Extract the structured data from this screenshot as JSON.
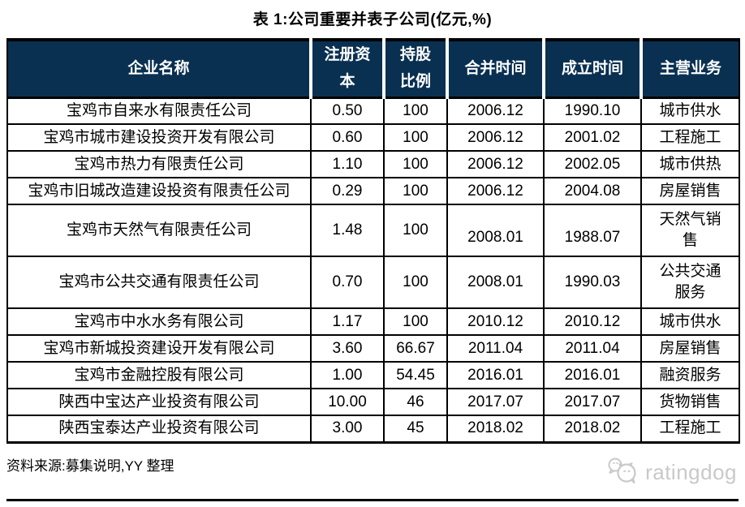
{
  "page": {
    "title": "表 1:公司重要并表子公司(亿元,%)",
    "source_note": "资料来源:募集说明,YY 整理",
    "brand": "ratingdog"
  },
  "colors": {
    "header_bg": "#093051",
    "header_text": "#ffffff",
    "table_border": "#000000",
    "brand_gray": "#c9c9c9"
  },
  "table": {
    "headers": [
      "企业名称",
      "注册资本",
      "持股比例",
      "合并时间",
      "成立时间",
      "主营业务"
    ],
    "rows": [
      [
        "宝鸡市自来水有限责任公司",
        "0.50",
        "100",
        "2006.12",
        "1990.10",
        "城市供水"
      ],
      [
        "宝鸡市城市建设投资开发有限公司",
        "0.60",
        "100",
        "2006.12",
        "2001.02",
        "工程施工"
      ],
      [
        "宝鸡市热力有限责任公司",
        "1.10",
        "100",
        "2006.12",
        "2002.05",
        "城市供热"
      ],
      [
        "宝鸡市旧城改造建设投资有限责任公司",
        "0.29",
        "100",
        "2006.12",
        "2004.08",
        "房屋销售"
      ],
      [
        "宝鸡市天然气有限责任公司",
        "1.48",
        "100",
        "2008.01",
        "1988.07",
        "天然气销售"
      ],
      [
        "宝鸡市公共交通有限责任公司",
        "0.70",
        "100",
        "2008.01",
        "1990.03",
        "公共交通服务"
      ],
      [
        "宝鸡市中水水务有限公司",
        "1.17",
        "100",
        "2010.12",
        "2010.12",
        "城市供水"
      ],
      [
        "宝鸡市新城投资建设开发有限公司",
        "3.60",
        "66.67",
        "2011.04",
        "2011.04",
        "房屋销售"
      ],
      [
        "宝鸡市金融控股有限公司",
        "1.00",
        "54.45",
        "2016.01",
        "2016.01",
        "融资服务"
      ],
      [
        "陕西中宝达产业投资有限公司",
        "10.00",
        "46",
        "2017.07",
        "2017.07",
        "货物销售"
      ],
      [
        "陕西宝泰达产业投资有限公司",
        "3.00",
        "45",
        "2018.02",
        "2018.02",
        "工程施工"
      ]
    ]
  }
}
